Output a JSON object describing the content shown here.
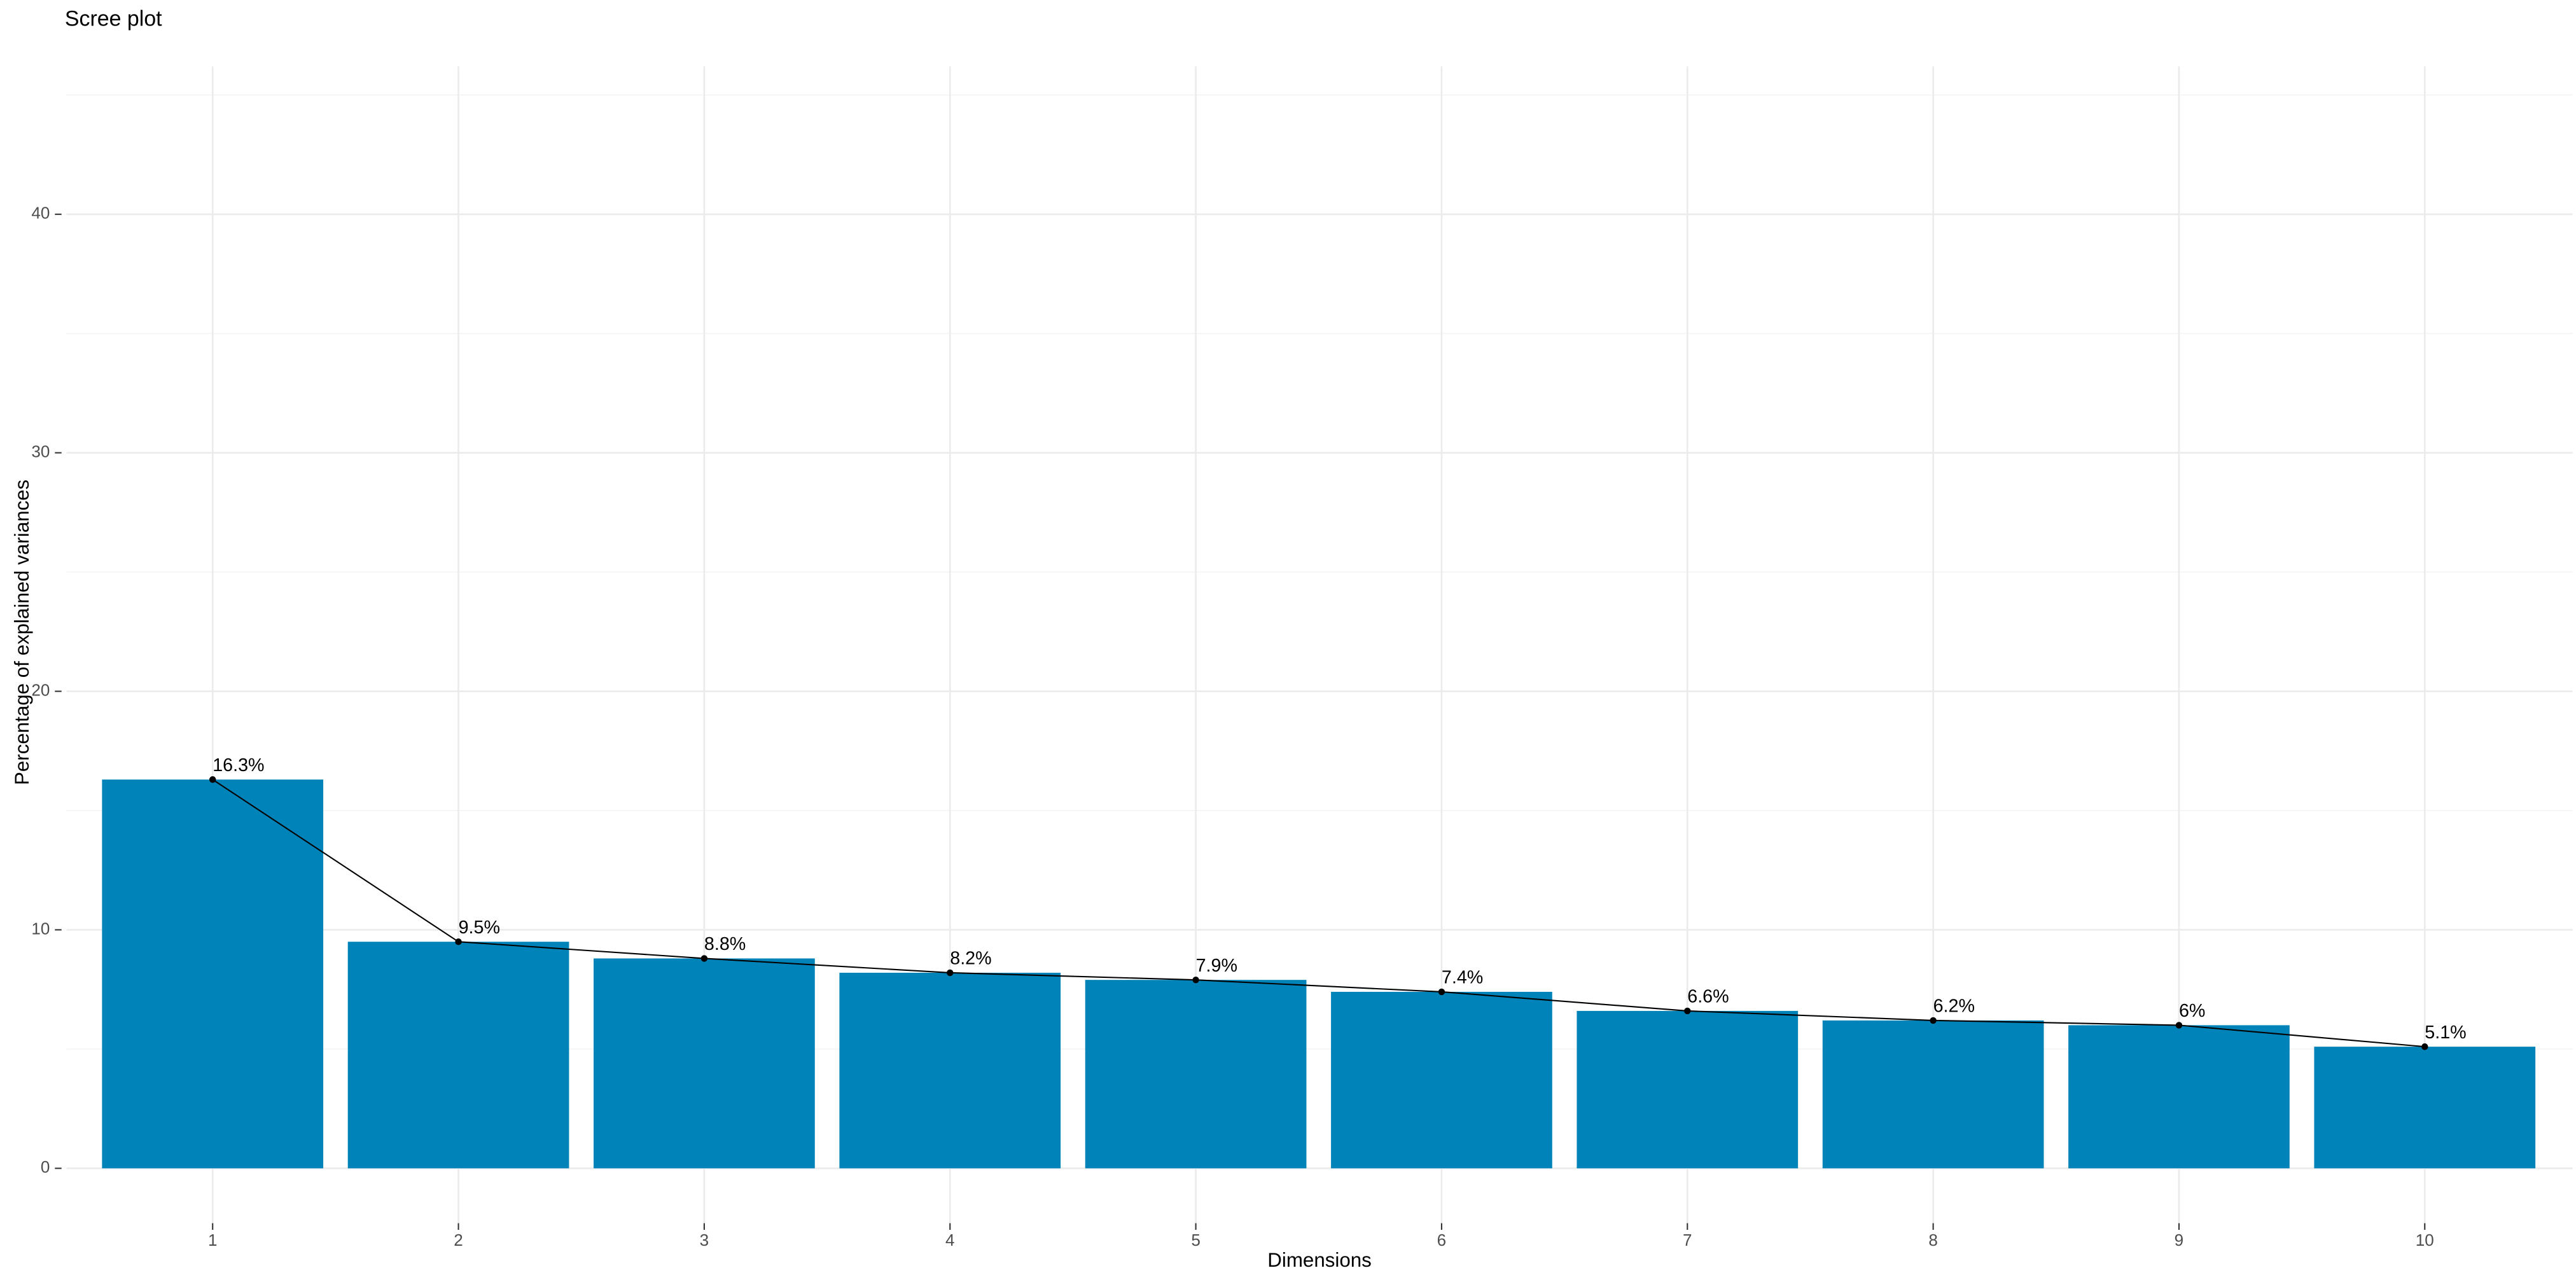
{
  "chart_data": {
    "type": "bar",
    "title": "Scree plot",
    "x_label": "Dimensions",
    "y_label": "Percentage of explained variances",
    "categories": [
      "1",
      "2",
      "3",
      "4",
      "5",
      "6",
      "7",
      "8",
      "9",
      "10"
    ],
    "values": [
      16.3,
      9.5,
      8.8,
      8.2,
      7.9,
      7.4,
      6.6,
      6.2,
      6,
      5.1
    ],
    "value_labels": [
      "16.3%",
      "9.5%",
      "8.8%",
      "8.2%",
      "7.9%",
      "7.4%",
      "6.6%",
      "6.2%",
      "6%",
      "5.1%"
    ],
    "color": "#0083b8",
    "line_color": "#000000",
    "ylim": [
      -2.3,
      46.2
    ],
    "yticks": [
      0,
      10,
      20,
      30,
      40
    ],
    "grid": true,
    "minor_grid": true
  }
}
